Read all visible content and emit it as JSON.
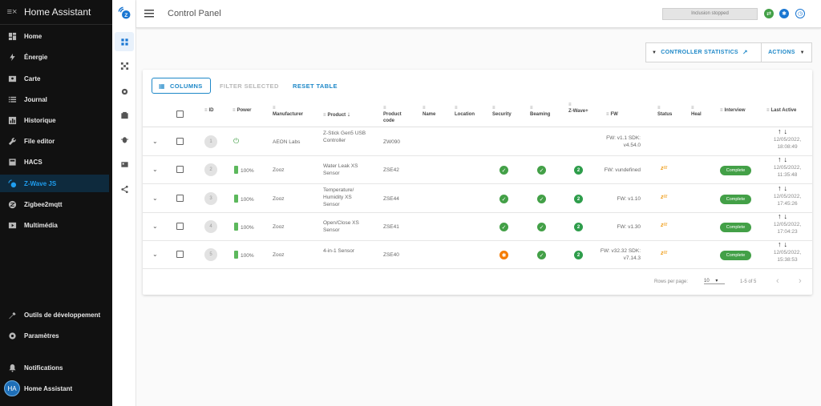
{
  "sidebar": {
    "title": "Home Assistant",
    "items": [
      {
        "label": "Home",
        "icon": "dashboard-icon"
      },
      {
        "label": "Énergie",
        "icon": "lightning-icon"
      },
      {
        "label": "Carte",
        "icon": "map-icon"
      },
      {
        "label": "Journal",
        "icon": "list-icon"
      },
      {
        "label": "Historique",
        "icon": "chart-icon"
      },
      {
        "label": "File editor",
        "icon": "wrench-icon"
      },
      {
        "label": "HACS",
        "icon": "hacs-icon"
      },
      {
        "label": "Z-Wave JS",
        "icon": "zwave-icon"
      },
      {
        "label": "Zigbee2mqtt",
        "icon": "zigbee-icon"
      },
      {
        "label": "Multimédia",
        "icon": "media-icon"
      }
    ],
    "bottom": [
      {
        "label": "Outils de développement",
        "icon": "hammer-icon"
      },
      {
        "label": "Paramètres",
        "icon": "gear-icon"
      },
      {
        "label": "Notifications",
        "icon": "bell-icon"
      },
      {
        "label": "Home Assistant",
        "avatar": "HA"
      }
    ],
    "accent": "#1f9ef0"
  },
  "topbar": {
    "title": "Control Panel",
    "inclusion_status": "Inclusion stopped"
  },
  "actions": {
    "controller_statistics": "CONTROLLER STATISTICS",
    "actions": "ACTIONS"
  },
  "toolbar": {
    "columns": "COLUMNS",
    "filter_selected": "FILTER SELECTED",
    "reset_table": "RESET TABLE"
  },
  "table": {
    "headers": {
      "id": "ID",
      "power": "Power",
      "manufacturer": "Manufacturer",
      "product": "Product",
      "product_code": "Product code",
      "name": "Name",
      "location": "Location",
      "security": "Security",
      "beaming": "Beaming",
      "zwave_plus": "Z-Wave+",
      "fw": "FW",
      "status": "Status",
      "heal": "Heal",
      "interview": "Interview",
      "last_active": "Last Active"
    },
    "rows": [
      {
        "id": "1",
        "power": "",
        "manufacturer": "AEON Labs",
        "product": "Z-Stick Gen5 USB Controller",
        "code": "ZW090",
        "fw": "FW: v1.1 SDK: v4.54.0",
        "last": "12/05/2022, 18:08:49",
        "security": "",
        "beaming": "",
        "zwaveplus": "",
        "asleep": false,
        "interview": ""
      },
      {
        "id": "2",
        "power": "100%",
        "manufacturer": "Zooz",
        "product": "Water Leak XS Sensor",
        "code": "ZSE42",
        "fw": "FW: vundefined",
        "last": "12/05/2022, 11:35:48",
        "security": "ok",
        "beaming": "ok",
        "zwaveplus": "2",
        "asleep": true,
        "interview": "Complete"
      },
      {
        "id": "3",
        "power": "100%",
        "manufacturer": "Zooz",
        "product": "Temperature/ Humidity XS Sensor",
        "code": "ZSE44",
        "fw": "FW: v1.10",
        "last": "12/05/2022, 17:45:26",
        "security": "ok",
        "beaming": "ok",
        "zwaveplus": "2",
        "asleep": true,
        "interview": "Complete"
      },
      {
        "id": "4",
        "power": "100%",
        "manufacturer": "Zooz",
        "product": "Open/Close XS Sensor",
        "code": "ZSE41",
        "fw": "FW: v1.30",
        "last": "12/05/2022, 17:04:23",
        "security": "ok",
        "beaming": "ok",
        "zwaveplus": "2",
        "asleep": true,
        "interview": "Complete"
      },
      {
        "id": "5",
        "power": "100%",
        "manufacturer": "Zooz",
        "product": "4-in-1 Sensor",
        "code": "ZSE40",
        "fw": "FW: v32.32 SDK: v7.14.3",
        "last": "12/05/2022, 15:38:53",
        "security": "warn",
        "beaming": "ok",
        "zwaveplus": "2",
        "asleep": true,
        "interview": "Complete"
      }
    ]
  },
  "footer": {
    "rows_per_page_label": "Rows per page:",
    "rows_per_page": "10",
    "range": "1-5 of 5"
  }
}
